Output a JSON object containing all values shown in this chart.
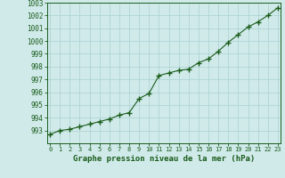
{
  "x": [
    0,
    1,
    2,
    3,
    4,
    5,
    6,
    7,
    8,
    9,
    10,
    11,
    12,
    13,
    14,
    15,
    16,
    17,
    18,
    19,
    20,
    21,
    22,
    23
  ],
  "y": [
    992.7,
    993.0,
    993.1,
    993.3,
    993.5,
    993.7,
    993.9,
    994.2,
    994.4,
    995.5,
    995.9,
    997.3,
    997.5,
    997.7,
    997.8,
    998.3,
    998.6,
    999.2,
    999.9,
    1000.5,
    1001.1,
    1001.5,
    1002.0,
    1002.6
  ],
  "line_color": "#1a5c1a",
  "marker_color": "#1a5c1a",
  "bg_color": "#d0eaea",
  "grid_color": "#b0d4d4",
  "xlabel": "Graphe pression niveau de la mer (hPa)",
  "xlabel_color": "#1a5c1a",
  "tick_color": "#1a5c1a",
  "ylim": [
    992,
    1003
  ],
  "xlim": [
    -0.3,
    23.3
  ],
  "yticks": [
    993,
    994,
    995,
    996,
    997,
    998,
    999,
    1000,
    1001,
    1002,
    1003
  ],
  "xticks": [
    0,
    1,
    2,
    3,
    4,
    5,
    6,
    7,
    8,
    9,
    10,
    11,
    12,
    13,
    14,
    15,
    16,
    17,
    18,
    19,
    20,
    21,
    22,
    23
  ],
  "ytick_labels": [
    "993",
    "994",
    "995",
    "996",
    "997",
    "998",
    "999",
    "1000",
    "1001",
    "1002",
    "1003"
  ]
}
